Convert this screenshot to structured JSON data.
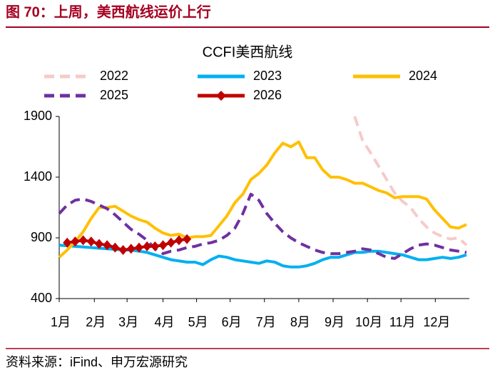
{
  "header": {
    "title": "图 70：上周，美西航线运价上行"
  },
  "chart_data": {
    "type": "line",
    "title": "CCFI美西航线",
    "x": [
      0,
      1,
      2,
      3,
      4,
      5,
      6,
      7,
      8,
      9,
      10,
      11,
      12,
      13,
      14,
      15,
      16,
      17,
      18,
      19,
      20,
      21,
      22,
      23,
      24,
      25,
      26,
      27,
      28,
      29,
      30,
      31,
      32,
      33,
      34,
      35,
      36,
      37,
      38,
      39,
      40,
      41,
      42,
      43,
      44,
      45,
      46,
      47,
      48,
      49,
      50,
      51
    ],
    "xlim": [
      0,
      51
    ],
    "xticks": [
      {
        "value": 0,
        "label": "1月"
      },
      {
        "value": 4.4,
        "label": "2月"
      },
      {
        "value": 8.5,
        "label": "3月"
      },
      {
        "value": 13,
        "label": "4月"
      },
      {
        "value": 17.2,
        "label": "5月"
      },
      {
        "value": 21.4,
        "label": "6月"
      },
      {
        "value": 25.7,
        "label": "7月"
      },
      {
        "value": 30,
        "label": "8月"
      },
      {
        "value": 34.3,
        "label": "9月"
      },
      {
        "value": 38.6,
        "label": "10月"
      },
      {
        "value": 42.8,
        "label": "11月"
      },
      {
        "value": 47.1,
        "label": "12月"
      }
    ],
    "ylim": [
      400,
      1900
    ],
    "yticks": [
      400,
      900,
      1400,
      1900
    ],
    "grid": false,
    "series": [
      {
        "name": "2022",
        "color": "#f7caca",
        "dash": true,
        "values": [
          null,
          null,
          null,
          null,
          null,
          null,
          null,
          null,
          null,
          null,
          null,
          null,
          null,
          null,
          null,
          null,
          null,
          null,
          null,
          null,
          null,
          null,
          null,
          null,
          null,
          null,
          null,
          null,
          null,
          null,
          null,
          null,
          null,
          null,
          null,
          null,
          null,
          1900,
          1700,
          1600,
          1490,
          1380,
          1270,
          1200,
          1150,
          1060,
          990,
          940,
          910,
          890,
          900,
          840
        ]
      },
      {
        "name": "2023",
        "color": "#00b0f0",
        "values": [
          840,
          835,
          830,
          825,
          820,
          815,
          810,
          805,
          800,
          800,
          790,
          780,
          760,
          740,
          720,
          710,
          700,
          700,
          680,
          720,
          750,
          740,
          720,
          710,
          700,
          690,
          710,
          700,
          670,
          660,
          660,
          670,
          690,
          720,
          740,
          740,
          760,
          780,
          780,
          790,
          790,
          780,
          770,
          760,
          740,
          720,
          720,
          730,
          740,
          730,
          740,
          760
        ]
      },
      {
        "name": "2024",
        "color": "#ffc000",
        "values": [
          740,
          800,
          870,
          950,
          1060,
          1150,
          1150,
          1160,
          1120,
          1080,
          1050,
          1030,
          980,
          940,
          920,
          930,
          900,
          910,
          910,
          920,
          1000,
          1080,
          1190,
          1260,
          1380,
          1430,
          1500,
          1600,
          1680,
          1650,
          1690,
          1560,
          1560,
          1460,
          1400,
          1400,
          1380,
          1350,
          1350,
          1320,
          1290,
          1270,
          1230,
          1240,
          1240,
          1240,
          1220,
          1130,
          1060,
          990,
          980,
          1010
        ]
      },
      {
        "name": "2025",
        "color": "#7030a0",
        "dash": true,
        "values": [
          1100,
          1170,
          1210,
          1220,
          1200,
          1170,
          1140,
          1090,
          1030,
          970,
          930,
          880,
          810,
          770,
          790,
          800,
          820,
          830,
          850,
          860,
          880,
          920,
          980,
          1100,
          1260,
          1210,
          1100,
          1020,
          950,
          900,
          860,
          830,
          800,
          780,
          770,
          770,
          780,
          790,
          810,
          800,
          770,
          740,
          730,
          770,
          810,
          840,
          850,
          840,
          820,
          800,
          790,
          780
        ]
      },
      {
        "name": "2026",
        "color": "#c00000",
        "marker": "diamond",
        "values": [
          null,
          860,
          870,
          880,
          870,
          850,
          840,
          820,
          800,
          810,
          820,
          830,
          830,
          840,
          860,
          880,
          890,
          null,
          null,
          null,
          null,
          null,
          null,
          null,
          null,
          null,
          null,
          null,
          null,
          null,
          null,
          null,
          null,
          null,
          null,
          null,
          null,
          null,
          null,
          null,
          null,
          null,
          null,
          null,
          null,
          null,
          null,
          null,
          null,
          null,
          null,
          null
        ]
      }
    ]
  },
  "footer": {
    "source": "资料来源：iFind、申万宏源研究"
  }
}
